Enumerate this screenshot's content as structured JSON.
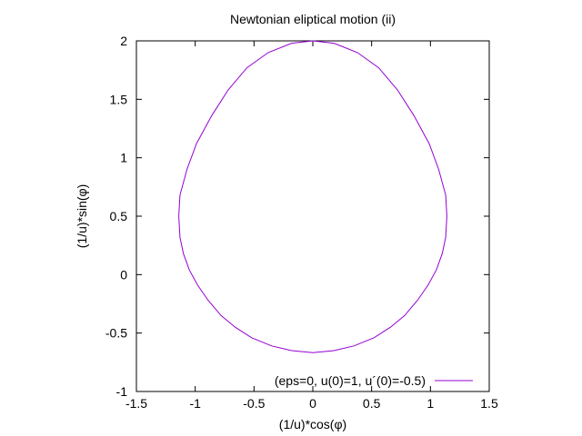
{
  "chart_data": {
    "type": "line",
    "title": "Newtonian eliptical motion (ii)",
    "xlabel": "(1/u)*cos(φ)",
    "ylabel": "(1/u)*sin(φ)",
    "xlim": [
      -1.5,
      1.5
    ],
    "ylim": [
      -1,
      2
    ],
    "x_ticks": [
      -1.5,
      -1,
      -0.5,
      0,
      0.5,
      1,
      1.5
    ],
    "y_ticks": [
      -1,
      -0.5,
      0,
      0.5,
      1,
      1.5,
      2
    ],
    "x_tick_labels": [
      "-1.5",
      "-1",
      "-0.5",
      "0",
      "0.5",
      "1",
      "1.5"
    ],
    "y_tick_labels": [
      "-1",
      "-0.5",
      "0",
      "0.5",
      "1",
      "1.5",
      "2"
    ],
    "grid": false,
    "legend_position": "bottom-right",
    "series": [
      {
        "name": "(eps=0, u(0)=1, u´(0)=-0.5)",
        "color": "#9400d3",
        "points": [
          [
            0.0,
            2.0
          ],
          [
            0.18,
            1.98
          ],
          [
            0.38,
            1.9
          ],
          [
            0.56,
            1.77
          ],
          [
            0.72,
            1.58
          ],
          [
            0.86,
            1.36
          ],
          [
            0.99,
            1.12
          ],
          [
            1.07,
            0.9
          ],
          [
            1.13,
            0.68
          ],
          [
            1.14,
            0.5
          ],
          [
            1.13,
            0.32
          ],
          [
            1.1,
            0.18
          ],
          [
            1.05,
            0.04
          ],
          [
            0.98,
            -0.09
          ],
          [
            0.89,
            -0.22
          ],
          [
            0.78,
            -0.35
          ],
          [
            0.66,
            -0.45
          ],
          [
            0.52,
            -0.54
          ],
          [
            0.35,
            -0.61
          ],
          [
            0.18,
            -0.65
          ],
          [
            0.0,
            -0.667
          ],
          [
            -0.18,
            -0.65
          ],
          [
            -0.35,
            -0.61
          ],
          [
            -0.52,
            -0.54
          ],
          [
            -0.66,
            -0.45
          ],
          [
            -0.78,
            -0.35
          ],
          [
            -0.89,
            -0.22
          ],
          [
            -0.98,
            -0.09
          ],
          [
            -1.05,
            0.04
          ],
          [
            -1.1,
            0.18
          ],
          [
            -1.13,
            0.32
          ],
          [
            -1.14,
            0.5
          ],
          [
            -1.13,
            0.68
          ],
          [
            -1.07,
            0.9
          ],
          [
            -0.99,
            1.12
          ],
          [
            -0.86,
            1.36
          ],
          [
            -0.72,
            1.58
          ],
          [
            -0.56,
            1.77
          ],
          [
            -0.38,
            1.9
          ],
          [
            -0.18,
            1.98
          ],
          [
            0.0,
            2.0
          ]
        ]
      }
    ]
  }
}
